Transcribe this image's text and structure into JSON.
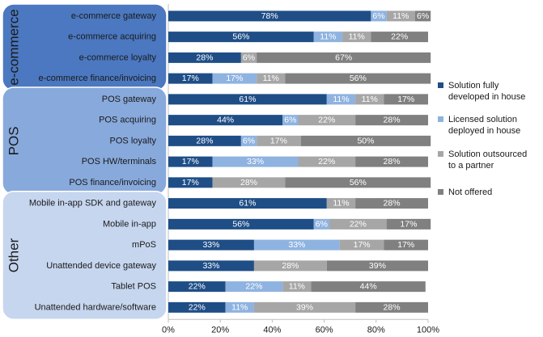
{
  "chart_data": {
    "type": "bar",
    "orientation": "horizontal",
    "stacked": true,
    "categories": [
      "e-commerce gateway",
      "e-commerce acquiring",
      "e-commerce loyalty",
      "e-commerce finance/invoicing",
      "POS gateway",
      "POS acquiring",
      "POS loyalty",
      "POS HW/terminals",
      "POS finance/invoicing",
      "Mobile in-app SDK and gateway",
      "Mobile in-app",
      "mPoS",
      "Unattended device gateway",
      "Tablet POS",
      "Unattended hardware/software"
    ],
    "series": [
      {
        "name": "Solution fully developed in house",
        "color": "#1f4e87",
        "values": [
          78,
          56,
          28,
          17,
          61,
          44,
          28,
          17,
          17,
          61,
          56,
          33,
          33,
          22,
          22
        ],
        "labels": [
          "78%",
          "56%",
          "28%",
          "17%",
          "61%",
          "44%",
          "28%",
          "17%",
          "17%",
          "61%",
          "56%",
          "33%",
          "33%",
          "22%",
          "22%"
        ]
      },
      {
        "name": "Licensed solution deployed in house",
        "color": "#8fb3e0",
        "values": [
          6,
          11,
          0,
          17,
          11,
          6,
          6,
          33,
          0,
          0,
          6,
          33,
          0,
          22,
          11
        ],
        "labels": [
          "6%",
          "11%",
          "",
          "17%",
          "11%",
          "6%",
          "6%",
          "33%",
          "",
          "",
          "6%",
          "33%",
          "",
          "22%",
          "11%"
        ]
      },
      {
        "name": "Solution outsourced to a partner",
        "color": "#a6a6a6",
        "values": [
          11,
          11,
          6,
          11,
          11,
          22,
          17,
          22,
          28,
          11,
          22,
          17,
          28,
          11,
          39
        ],
        "labels": [
          "11%",
          "11%",
          "6%",
          "11%",
          "11%",
          "22%",
          "17%",
          "22%",
          "28%",
          "11%",
          "22%",
          "17%",
          "28%",
          "11%",
          "39%"
        ]
      },
      {
        "name": "Not offered",
        "color": "#808080",
        "values": [
          6,
          22,
          67,
          56,
          17,
          28,
          50,
          28,
          56,
          28,
          17,
          17,
          39,
          44,
          28
        ],
        "labels": [
          "6%",
          "22%",
          "67%",
          "56%",
          "17%",
          "28%",
          "50%",
          "28%",
          "56%",
          "28%",
          "17%",
          "17%",
          "39%",
          "44%",
          "28%"
        ]
      }
    ],
    "groups": [
      {
        "name": "e-commerce",
        "start": 0,
        "end": 3,
        "color": "#4b78c0"
      },
      {
        "name": "POS",
        "start": 4,
        "end": 8,
        "color": "#88a9dc"
      },
      {
        "name": "Other",
        "start": 9,
        "end": 14,
        "color": "#c6d6ef"
      }
    ],
    "xlim": [
      0,
      100
    ],
    "xticks": [
      "0%",
      "20%",
      "40%",
      "60%",
      "80%",
      "100%"
    ],
    "legend_position": "right",
    "title": "",
    "xlabel": "",
    "ylabel": ""
  }
}
